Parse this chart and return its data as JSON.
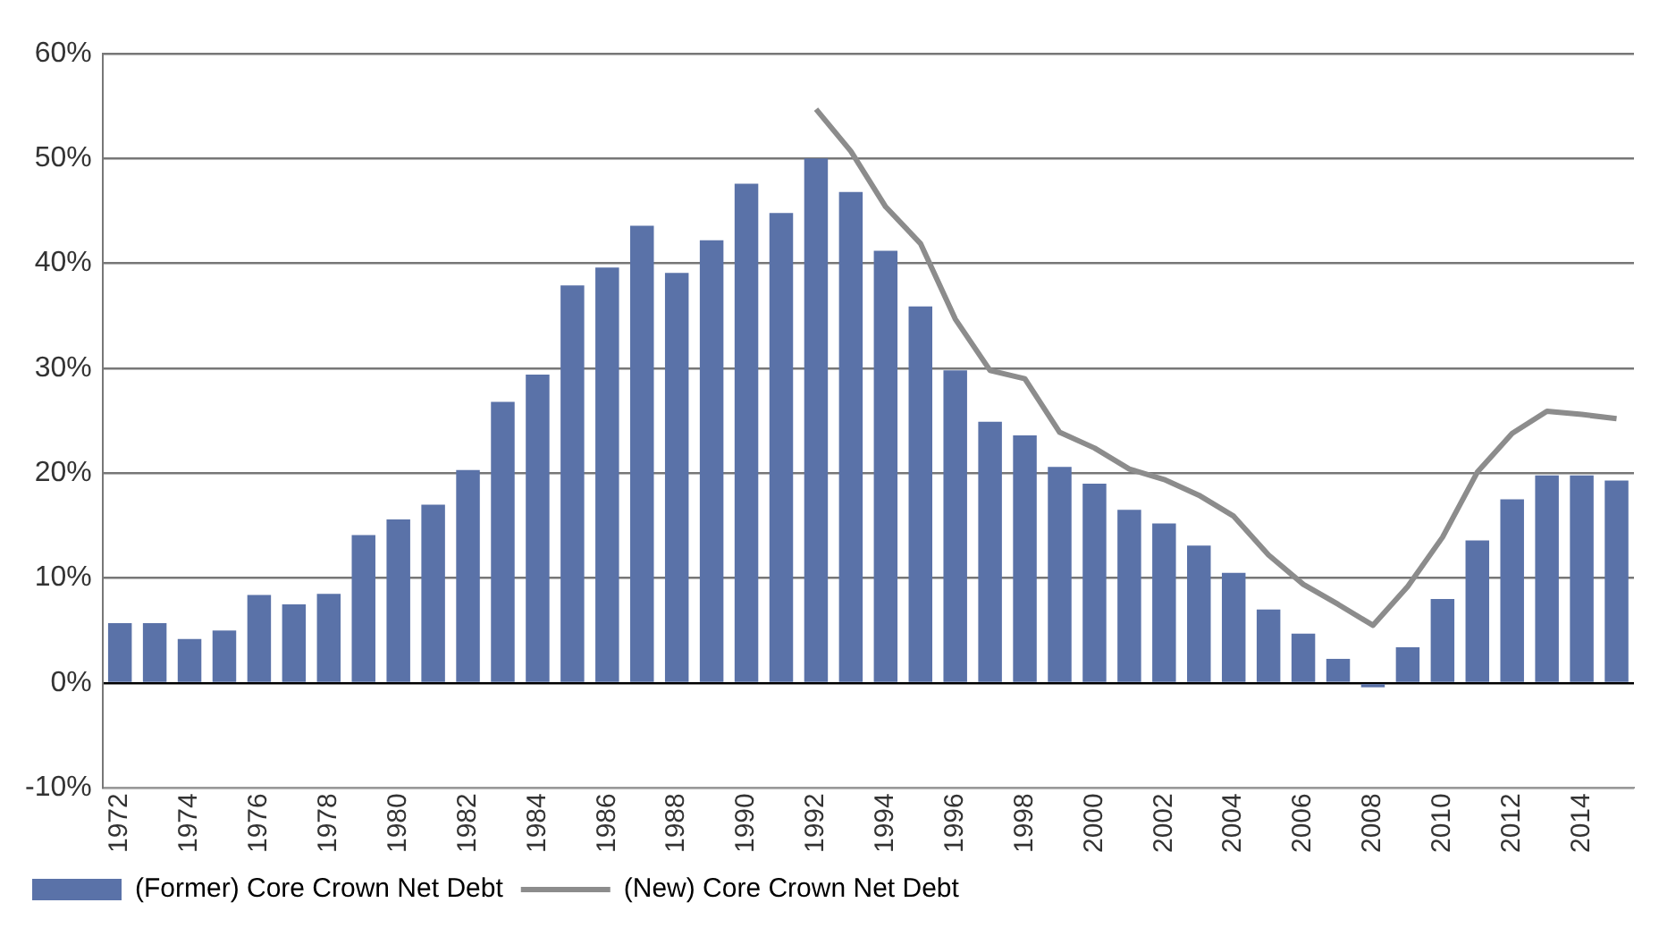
{
  "chart_data": {
    "type": "bar",
    "categories": [
      "1972",
      null,
      "1974",
      null,
      "1976",
      null,
      "1978",
      null,
      "1980",
      null,
      "1982",
      null,
      "1984",
      null,
      "1986",
      null,
      "1988",
      null,
      "1990",
      null,
      "1992",
      null,
      "1994",
      null,
      "1996",
      null,
      "1998",
      null,
      "2000",
      null,
      "2002",
      null,
      "2004",
      null,
      "2006",
      null,
      "2008",
      null,
      "2010",
      null,
      "2012",
      null,
      "2014",
      null
    ],
    "series": [
      {
        "name": "(Former) Core Crown Net Debt",
        "color": "#5a72a8",
        "values": [
          5.7,
          5.7,
          4.2,
          5.0,
          8.4,
          7.5,
          8.5,
          14.1,
          15.6,
          17.0,
          20.3,
          26.8,
          29.4,
          37.9,
          39.6,
          43.6,
          39.1,
          42.2,
          47.6,
          44.8,
          50.0,
          46.8,
          41.2,
          35.9,
          29.8,
          24.9,
          23.6,
          20.6,
          19.0,
          16.5,
          15.2,
          13.1,
          10.5,
          7.0,
          4.7,
          2.3,
          -0.4,
          3.4,
          8.0,
          13.6,
          17.5,
          19.8,
          19.8,
          19.3
        ]
      },
      {
        "name": "(New) Core Crown Net Debt",
        "type": "line",
        "color": "#8c8c8c",
        "values": [
          null,
          null,
          null,
          null,
          null,
          null,
          null,
          null,
          null,
          null,
          null,
          null,
          null,
          null,
          null,
          null,
          null,
          null,
          null,
          null,
          54.7,
          50.7,
          45.4,
          41.9,
          34.7,
          29.8,
          29.0,
          23.9,
          22.4,
          20.4,
          19.4,
          17.9,
          15.9,
          12.2,
          9.4,
          7.5,
          5.5,
          9.2,
          13.9,
          20.1,
          23.8,
          25.9,
          25.6,
          25.2
        ]
      }
    ],
    "ylim": [
      -10,
      60
    ],
    "yticks": [
      {
        "value": -10,
        "label": "-10%"
      },
      {
        "value": 0,
        "label": "0%"
      },
      {
        "value": 10,
        "label": "10%"
      },
      {
        "value": 20,
        "label": "20%"
      },
      {
        "value": 30,
        "label": "30%"
      },
      {
        "value": 40,
        "label": "40%"
      },
      {
        "value": 50,
        "label": "50%"
      },
      {
        "value": 60,
        "label": "60%"
      }
    ],
    "grid": "y",
    "legend": "bottom left",
    "marker": "none",
    "line_style": "solid"
  }
}
